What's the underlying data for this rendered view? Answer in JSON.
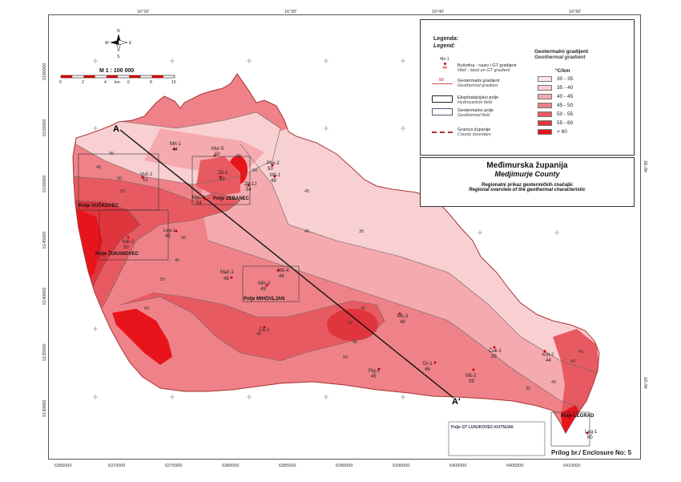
{
  "title": "Međimurska županija",
  "title_sub": "Medjimurje County",
  "subtitle": "Regionalni prikaz geotermičkih značajki",
  "subtitle_en": "Regional overview of the geothermal characteristic",
  "enclosure": "Prilog br./ Enclosure No: 5",
  "scale_text": "M   1 : 100 000",
  "scale_ticks": [
    "0",
    "2",
    "4",
    "6",
    "8",
    "10"
  ],
  "scale_unit": "km",
  "legend": {
    "header": "Legenda:",
    "header_en": "Legend:",
    "items": [
      {
        "symbol_top": "Mn-1",
        "symbol_bottom": "44",
        "label": "Bušotina - naziv i GT gradijent",
        "label_en": "Well - label an GT gradient"
      },
      {
        "symbol_top": "50",
        "label": "Geotermalni gradijent",
        "label_en": "Geothermal gradient"
      },
      {
        "label": "Eksploatacijsko polje",
        "label_en": "Hydrocarbon field"
      },
      {
        "label": "Geotermalno polje",
        "label_en": "Geothermal field"
      },
      {
        "label": "Granica županije",
        "label_en": "County boundary"
      }
    ],
    "gradient_title": "Geotermalni gradijent",
    "gradient_title_en": "Geothermal gradient",
    "gradient_unit": "°C/km",
    "classes": [
      {
        "label": "30 - 35",
        "color": "#fde9ea"
      },
      {
        "label": "35 - 40",
        "color": "#f9d0d2"
      },
      {
        "label": "40 - 45",
        "color": "#f4aaae"
      },
      {
        "label": "45 - 50",
        "color": "#ee8288"
      },
      {
        "label": "50 - 55",
        "color": "#e85a61"
      },
      {
        "label": "55 - 60",
        "color": "#e1353d"
      },
      {
        "label": "> 60",
        "color": "#e8141c"
      }
    ]
  },
  "top_ticks": [
    "16°20'",
    "16°30'",
    "16°40'",
    "16°50'"
  ],
  "side_ticks": [
    "46°30'",
    "46°20'"
  ],
  "bottom_ticks": [
    "6365000",
    "6370000",
    "6375000",
    "6380000",
    "6385000",
    "6390000",
    "6395000",
    "6400000",
    "6405000",
    "6410000"
  ],
  "left_ticks": [
    "5160000",
    "5155000",
    "5150000",
    "5145000",
    "5140000",
    "5135000",
    "5130000"
  ],
  "profile_labels": [
    "A",
    "A'"
  ],
  "fields": [
    {
      "name": "Polje VUČKOVEC"
    },
    {
      "name": "Polje ŽUKANOVEC"
    },
    {
      "name": "Polje ZEBANEC"
    },
    {
      "name": "Polje MIHOVLJAN"
    },
    {
      "name": "Polje LEGRAD"
    },
    {
      "name": "Polje GT LUNJKOVEC-KUTNJAK"
    }
  ],
  "wells": [
    {
      "name": "Mrt-1",
      "value": "44"
    },
    {
      "name": "Msr-5",
      "value": "50"
    },
    {
      "name": "Vuč-1",
      "value": "51"
    },
    {
      "name": "Zb-1",
      "value": "53"
    },
    {
      "name": "Zb-1J",
      "value": "54"
    },
    {
      "name": "Pek-2",
      "value": "50"
    },
    {
      "name": "Mš-1",
      "value": "49"
    },
    {
      "name": "Mer-1",
      "value": "54"
    },
    {
      "name": "Lep-1",
      "value": "49"
    },
    {
      "name": "Vuk-2",
      "value": "50"
    },
    {
      "name": "Mač-1",
      "value": "48"
    },
    {
      "name": "Mš-4",
      "value": "48"
    },
    {
      "name": "Mih-3",
      "value": "49"
    },
    {
      "name": "Ča-1",
      "value": ""
    },
    {
      "name": "Mš-3",
      "value": "48"
    },
    {
      "name": "Dr-1",
      "value": "46"
    },
    {
      "name": "Pig-1",
      "value": "45"
    },
    {
      "name": "Mš-2",
      "value": "39"
    },
    {
      "name": "Čuk-1",
      "value": "39"
    },
    {
      "name": "Kot-2",
      "value": "44"
    },
    {
      "name": "Leg-1",
      "value": "60"
    }
  ],
  "contour_labels": [
    "40",
    "45",
    "50",
    "55",
    "55",
    "50",
    "45",
    "40",
    "35",
    "60",
    "50",
    "45",
    "40",
    "35",
    "55",
    "50",
    "45",
    "40",
    "45",
    "40",
    "45",
    "50"
  ]
}
